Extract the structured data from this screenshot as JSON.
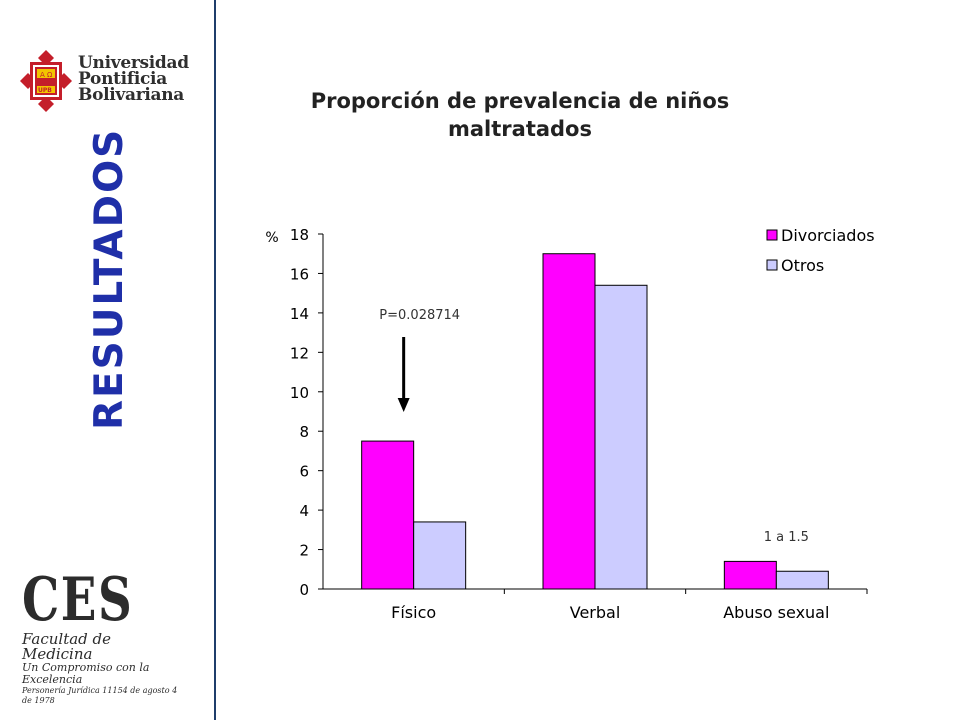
{
  "branding": {
    "upb_lines": [
      "Universidad",
      "Pontificia",
      "Bolivariana"
    ],
    "upb_shield_letters": [
      "A",
      "Ω",
      "UPB"
    ],
    "ces_mark": "CES",
    "ces_faculty": "Facultad de Medicina",
    "ces_motto": "Un Compromiso con la Excelencia",
    "ces_legal": "Personería Jurídica 11154 de agosto 4 de 1978"
  },
  "section_title": "RESULTADOS",
  "colors": {
    "divorciados": "#ff00ff",
    "otros": "#ccccff",
    "accent": "#1f2fa8"
  },
  "chart_data": {
    "type": "bar",
    "title": "Proporción de prevalencia de niños maltratados",
    "ylabel": "%",
    "ylim": [
      0,
      18
    ],
    "yticks": [
      0,
      2,
      4,
      6,
      8,
      10,
      12,
      14,
      16,
      18
    ],
    "categories": [
      "Físico",
      "Verbal",
      "Abuso sexual"
    ],
    "series": [
      {
        "name": "Divorciados",
        "values": [
          7.5,
          17.0,
          1.4
        ]
      },
      {
        "name": "Otros",
        "values": [
          3.4,
          15.4,
          0.9
        ]
      }
    ],
    "legend_position": "top-right",
    "grid": false,
    "annotations": [
      {
        "text": "P=0.028714",
        "category": "Físico",
        "arrow": true
      },
      {
        "text": "1 a 1.5",
        "category": "Abuso sexual",
        "arrow": false
      }
    ]
  }
}
